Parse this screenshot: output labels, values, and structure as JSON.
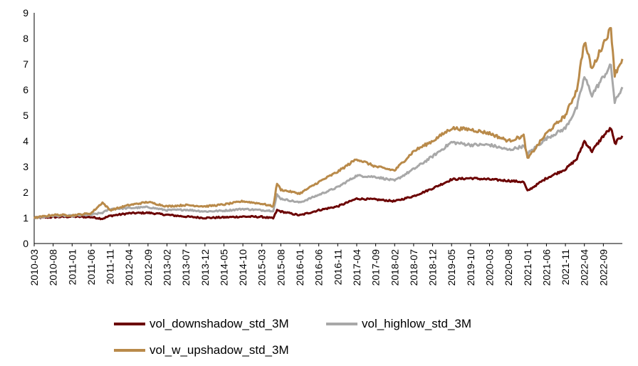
{
  "chart_data": {
    "type": "line",
    "ylim": [
      0,
      9
    ],
    "yticks": [
      0,
      1,
      2,
      3,
      4,
      5,
      6,
      7,
      8,
      9
    ],
    "xticks": [
      "2010-03",
      "2010-08",
      "2011-01",
      "2011-06",
      "2011-11",
      "2012-04",
      "2012-09",
      "2013-02",
      "2013-07",
      "2013-12",
      "2014-05",
      "2014-10",
      "2015-03",
      "2015-08",
      "2016-01",
      "2016-06",
      "2016-11",
      "2017-04",
      "2017-09",
      "2018-02",
      "2018-07",
      "2018-12",
      "2019-05",
      "2019-10",
      "2020-03",
      "2020-08",
      "2021-01",
      "2021-06",
      "2021-11",
      "2022-04",
      "2022-09"
    ],
    "xlim": [
      "2010-03",
      "2023-02"
    ],
    "grid": false,
    "legend_position": "bottom",
    "series": [
      {
        "name": "vol_downshadow_std_3M",
        "color": "#6b0000",
        "points": [
          [
            "2010-03",
            1.0
          ],
          [
            "2010-08",
            1.03
          ],
          [
            "2011-01",
            1.05
          ],
          [
            "2011-06",
            1.03
          ],
          [
            "2011-09",
            0.97
          ],
          [
            "2011-11",
            1.08
          ],
          [
            "2012-04",
            1.18
          ],
          [
            "2012-09",
            1.2
          ],
          [
            "2013-02",
            1.12
          ],
          [
            "2013-07",
            1.05
          ],
          [
            "2013-12",
            1.0
          ],
          [
            "2014-05",
            1.02
          ],
          [
            "2014-10",
            1.05
          ],
          [
            "2015-03",
            1.04
          ],
          [
            "2015-06",
            0.98
          ],
          [
            "2015-07",
            1.3
          ],
          [
            "2015-08",
            1.25
          ],
          [
            "2016-01",
            1.1
          ],
          [
            "2016-06",
            1.3
          ],
          [
            "2016-11",
            1.45
          ],
          [
            "2017-04",
            1.75
          ],
          [
            "2017-09",
            1.72
          ],
          [
            "2018-02",
            1.65
          ],
          [
            "2018-07",
            1.85
          ],
          [
            "2018-12",
            2.15
          ],
          [
            "2019-05",
            2.5
          ],
          [
            "2019-10",
            2.55
          ],
          [
            "2020-03",
            2.5
          ],
          [
            "2020-08",
            2.45
          ],
          [
            "2020-12",
            2.4
          ],
          [
            "2021-01",
            2.05
          ],
          [
            "2021-06",
            2.55
          ],
          [
            "2021-11",
            2.9
          ],
          [
            "2022-02",
            3.3
          ],
          [
            "2022-04",
            4.0
          ],
          [
            "2022-06",
            3.6
          ],
          [
            "2022-09",
            4.2
          ],
          [
            "2022-11",
            4.5
          ],
          [
            "2022-12",
            3.9
          ],
          [
            "2023-02",
            4.2
          ]
        ]
      },
      {
        "name": "vol_highlow_std_3M",
        "color": "#a8a8a8",
        "points": [
          [
            "2010-03",
            1.0
          ],
          [
            "2010-08",
            1.08
          ],
          [
            "2011-01",
            1.08
          ],
          [
            "2011-06",
            1.12
          ],
          [
            "2011-09",
            1.2
          ],
          [
            "2011-11",
            1.35
          ],
          [
            "2012-04",
            1.38
          ],
          [
            "2012-09",
            1.42
          ],
          [
            "2013-02",
            1.3
          ],
          [
            "2013-07",
            1.32
          ],
          [
            "2013-12",
            1.25
          ],
          [
            "2014-05",
            1.28
          ],
          [
            "2014-10",
            1.35
          ],
          [
            "2015-03",
            1.3
          ],
          [
            "2015-06",
            1.28
          ],
          [
            "2015-07",
            1.9
          ],
          [
            "2015-08",
            1.75
          ],
          [
            "2016-01",
            1.6
          ],
          [
            "2016-06",
            1.9
          ],
          [
            "2016-11",
            2.2
          ],
          [
            "2017-04",
            2.65
          ],
          [
            "2017-09",
            2.6
          ],
          [
            "2018-02",
            2.45
          ],
          [
            "2018-07",
            2.9
          ],
          [
            "2018-12",
            3.4
          ],
          [
            "2019-05",
            3.95
          ],
          [
            "2019-10",
            3.85
          ],
          [
            "2020-03",
            3.85
          ],
          [
            "2020-08",
            3.65
          ],
          [
            "2020-12",
            3.8
          ],
          [
            "2021-01",
            3.5
          ],
          [
            "2021-06",
            4.1
          ],
          [
            "2021-11",
            4.5
          ],
          [
            "2022-02",
            5.3
          ],
          [
            "2022-04",
            6.5
          ],
          [
            "2022-06",
            5.8
          ],
          [
            "2022-09",
            6.5
          ],
          [
            "2022-11",
            6.95
          ],
          [
            "2022-12",
            5.5
          ],
          [
            "2023-02",
            6.1
          ]
        ]
      },
      {
        "name": "vol_w_upshadow_std_3M",
        "color": "#b98a4a",
        "points": [
          [
            "2010-03",
            1.0
          ],
          [
            "2010-08",
            1.12
          ],
          [
            "2011-01",
            1.1
          ],
          [
            "2011-06",
            1.18
          ],
          [
            "2011-09",
            1.6
          ],
          [
            "2011-11",
            1.3
          ],
          [
            "2012-04",
            1.5
          ],
          [
            "2012-09",
            1.62
          ],
          [
            "2013-02",
            1.45
          ],
          [
            "2013-07",
            1.5
          ],
          [
            "2013-12",
            1.45
          ],
          [
            "2014-05",
            1.52
          ],
          [
            "2014-10",
            1.65
          ],
          [
            "2015-03",
            1.55
          ],
          [
            "2015-06",
            1.45
          ],
          [
            "2015-07",
            2.35
          ],
          [
            "2015-08",
            2.1
          ],
          [
            "2016-01",
            1.95
          ],
          [
            "2016-06",
            2.4
          ],
          [
            "2016-11",
            2.8
          ],
          [
            "2017-04",
            3.3
          ],
          [
            "2017-09",
            3.0
          ],
          [
            "2018-02",
            2.85
          ],
          [
            "2018-07",
            3.6
          ],
          [
            "2018-12",
            4.0
          ],
          [
            "2019-05",
            4.5
          ],
          [
            "2019-10",
            4.45
          ],
          [
            "2020-03",
            4.3
          ],
          [
            "2020-08",
            4.0
          ],
          [
            "2020-12",
            4.2
          ],
          [
            "2021-01",
            3.3
          ],
          [
            "2021-06",
            4.3
          ],
          [
            "2021-11",
            5.0
          ],
          [
            "2022-02",
            6.0
          ],
          [
            "2022-04",
            7.9
          ],
          [
            "2022-06",
            6.8
          ],
          [
            "2022-09",
            7.8
          ],
          [
            "2022-11",
            8.4
          ],
          [
            "2022-12",
            6.6
          ],
          [
            "2023-02",
            7.2
          ]
        ]
      }
    ]
  }
}
